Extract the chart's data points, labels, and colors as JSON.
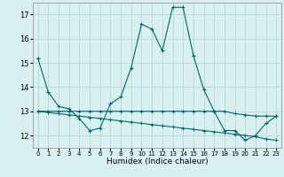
{
  "xlabel": "Humidex (Indice chaleur)",
  "bg_color": "#d8f0f0",
  "grid_color": "#b8d8d8",
  "line_color": "#006868",
  "x": [
    0,
    1,
    2,
    3,
    4,
    5,
    6,
    7,
    8,
    9,
    10,
    11,
    12,
    13,
    14,
    15,
    16,
    17,
    18,
    19,
    20,
    21,
    22,
    23
  ],
  "line1": [
    15.2,
    13.8,
    13.2,
    13.1,
    12.7,
    12.2,
    12.3,
    13.3,
    13.6,
    14.8,
    16.6,
    16.4,
    15.5,
    17.3,
    17.3,
    15.3,
    13.9,
    13.0,
    12.2,
    12.2,
    11.8,
    12.0,
    12.5,
    12.8
  ],
  "line2": [
    13.0,
    13.0,
    13.0,
    13.0,
    13.0,
    13.0,
    13.0,
    13.0,
    13.0,
    13.0,
    13.0,
    13.0,
    13.0,
    13.0,
    13.0,
    13.0,
    13.0,
    13.0,
    13.0,
    12.9,
    12.85,
    12.8,
    12.8,
    12.8
  ],
  "line3": [
    13.0,
    12.95,
    12.9,
    12.85,
    12.8,
    12.75,
    12.7,
    12.65,
    12.6,
    12.55,
    12.5,
    12.45,
    12.4,
    12.35,
    12.3,
    12.25,
    12.2,
    12.15,
    12.1,
    12.05,
    12.0,
    11.95,
    11.85,
    11.8
  ],
  "ylim": [
    11.5,
    17.5
  ],
  "yticks": [
    12,
    13,
    14,
    15,
    16,
    17
  ],
  "xticks": [
    0,
    1,
    2,
    3,
    4,
    5,
    6,
    7,
    8,
    9,
    10,
    11,
    12,
    13,
    14,
    15,
    16,
    17,
    18,
    19,
    20,
    21,
    22,
    23
  ],
  "xlim": [
    -0.5,
    23.5
  ]
}
